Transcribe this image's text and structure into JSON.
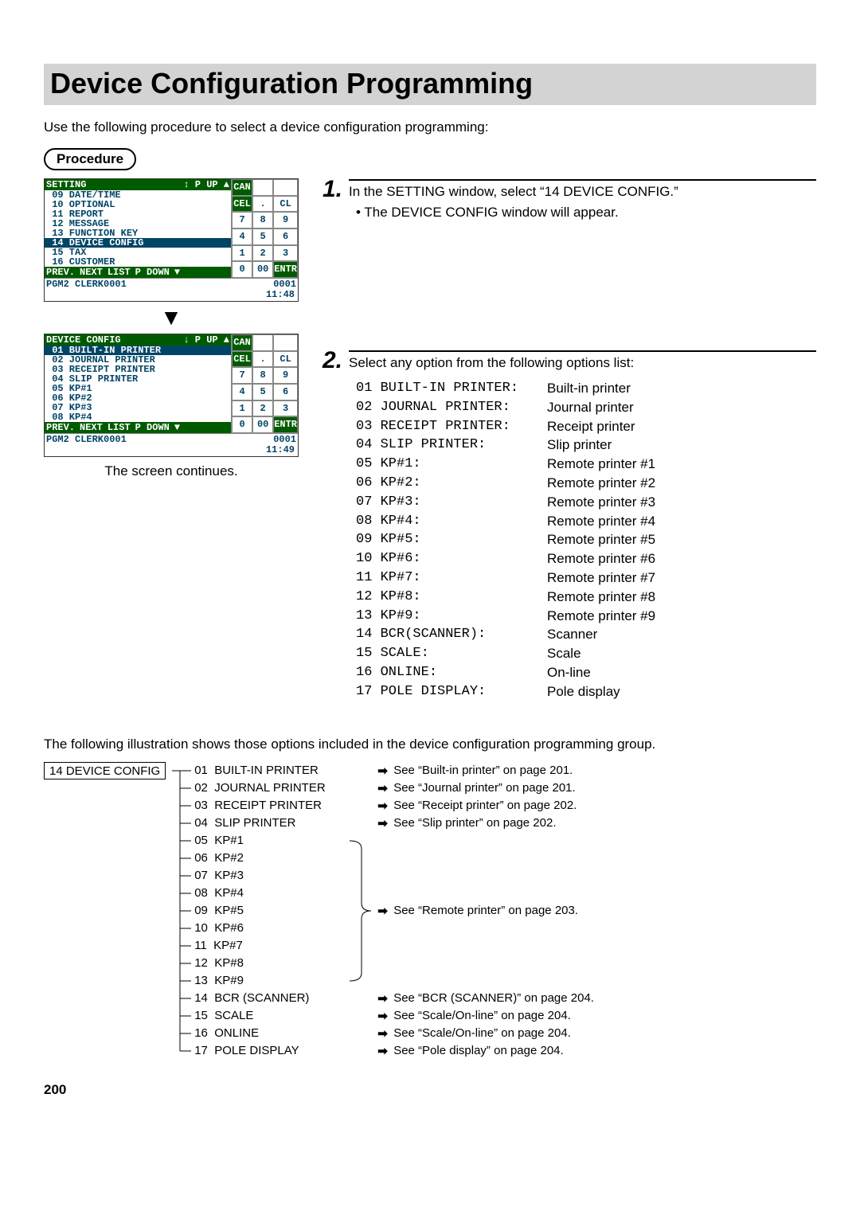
{
  "page_number": "200",
  "title": "Device Configuration Programming",
  "intro": "Use the following procedure to select a device configuration programming:",
  "procedure_label": "Procedure",
  "screen_continues": "The screen continues.",
  "pos1": {
    "header": "SETTING",
    "header_nav": "↕   P UP  ▲",
    "items": [
      "09 DATE/TIME",
      "10 OPTIONAL",
      "11 REPORT",
      "12 MESSAGE",
      "13 FUNCTION KEY"
    ],
    "highlight": "14 DEVICE CONFIG",
    "items_after": [
      "15 TAX",
      "16 CUSTOMER"
    ],
    "footer": [
      "PREV.",
      "NEXT",
      "LIST",
      "P DOWN",
      "▼"
    ],
    "status_left": "PGM2   CLERK0001",
    "status_right": "0001",
    "time": "11:48"
  },
  "pos2": {
    "header": "DEVICE CONFIG",
    "header_nav": "↓   P UP  ▲",
    "highlight": "01 BUILT-IN PRINTER",
    "items_after": [
      "02 JOURNAL PRINTER",
      "03 RECEIPT PRINTER",
      "04 SLIP PRINTER",
      "05 KP#1",
      "06 KP#2",
      "07 KP#3",
      "08 KP#4"
    ],
    "footer": [
      "PREV.",
      "NEXT",
      "LIST",
      "P DOWN",
      "▼"
    ],
    "status_left": "PGM2   CLERK0001",
    "status_right": "0001",
    "time": "11:49"
  },
  "keypad": {
    "rows": [
      [
        "CAN",
        "",
        ""
      ],
      [
        "CEL",
        ".",
        "CL"
      ],
      [
        "7",
        "8",
        "9"
      ],
      [
        "4",
        "5",
        "6"
      ],
      [
        "1",
        "2",
        "3"
      ],
      [
        "0",
        "00",
        "ENTR"
      ]
    ],
    "green_cells": [
      "CAN",
      "CEL",
      "ENTR"
    ]
  },
  "steps": {
    "step1": {
      "num": "1.",
      "text": "In the SETTING window, select “14 DEVICE CONFIG.”",
      "bullet": "• The DEVICE CONFIG window will appear."
    },
    "step2": {
      "num": "2.",
      "text": "Select any option from the following options list:",
      "options": [
        {
          "code": "01 BUILT-IN PRINTER:",
          "desc": "Built-in printer"
        },
        {
          "code": "02 JOURNAL PRINTER:",
          "desc": "Journal printer"
        },
        {
          "code": "03 RECEIPT PRINTER:",
          "desc": "Receipt printer"
        },
        {
          "code": "04 SLIP PRINTER:",
          "desc": "Slip printer"
        },
        {
          "code": "05 KP#1:",
          "desc": "Remote printer #1"
        },
        {
          "code": "06 KP#2:",
          "desc": "Remote printer #2"
        },
        {
          "code": "07 KP#3:",
          "desc": "Remote printer #3"
        },
        {
          "code": "08 KP#4:",
          "desc": "Remote printer #4"
        },
        {
          "code": "09 KP#5:",
          "desc": "Remote printer #5"
        },
        {
          "code": "10 KP#6:",
          "desc": "Remote printer #6"
        },
        {
          "code": "11 KP#7:",
          "desc": "Remote printer #7"
        },
        {
          "code": "12 KP#8:",
          "desc": "Remote printer #8"
        },
        {
          "code": "13 KP#9:",
          "desc": "Remote printer #9"
        },
        {
          "code": "14 BCR(SCANNER):",
          "desc": "Scanner"
        },
        {
          "code": "15 SCALE:",
          "desc": "Scale"
        },
        {
          "code": "16 ONLINE:",
          "desc": "On-line"
        },
        {
          "code": "17 POLE DISPLAY:",
          "desc": "Pole display"
        }
      ]
    }
  },
  "tree": {
    "intro": "The following illustration shows those options included in the device configuration programming group.",
    "root": "14 DEVICE CONFIG",
    "remote_ref": "See “Remote printer” on page 203.",
    "items": [
      {
        "label": "01  BUILT-IN PRINTER",
        "ref": "See “Built-in printer” on page 201.",
        "show_arrow": true
      },
      {
        "label": "02  JOURNAL PRINTER",
        "ref": "See “Journal printer” on page 201.",
        "show_arrow": true
      },
      {
        "label": "03  RECEIPT PRINTER",
        "ref": "See “Receipt printer” on page 202.",
        "show_arrow": true
      },
      {
        "label": "04  SLIP PRINTER",
        "ref": "See “Slip printer” on page 202.",
        "show_arrow": true
      },
      {
        "label": "05  KP#1",
        "ref": "",
        "show_arrow": false
      },
      {
        "label": "06  KP#2",
        "ref": "",
        "show_arrow": false
      },
      {
        "label": "07  KP#3",
        "ref": "",
        "show_arrow": false
      },
      {
        "label": "08  KP#4",
        "ref": "",
        "show_arrow": false
      },
      {
        "label": "09  KP#5",
        "ref": "",
        "show_arrow": false
      },
      {
        "label": "10  KP#6",
        "ref": "",
        "show_arrow": false
      },
      {
        "label": "11  KP#7",
        "ref": "",
        "show_arrow": false
      },
      {
        "label": "12  KP#8",
        "ref": "",
        "show_arrow": false
      },
      {
        "label": "13  KP#9",
        "ref": "",
        "show_arrow": false
      },
      {
        "label": "14  BCR (SCANNER)",
        "ref": "See “BCR (SCANNER)” on page 204.",
        "show_arrow": true
      },
      {
        "label": "15  SCALE",
        "ref": "See “Scale/On-line” on page 204.",
        "show_arrow": true
      },
      {
        "label": "16  ONLINE",
        "ref": "See “Scale/On-line” on page 204.",
        "show_arrow": true
      },
      {
        "label": "17  POLE DISPLAY",
        "ref": "See “Pole display” on page 204.",
        "show_arrow": true
      }
    ]
  }
}
